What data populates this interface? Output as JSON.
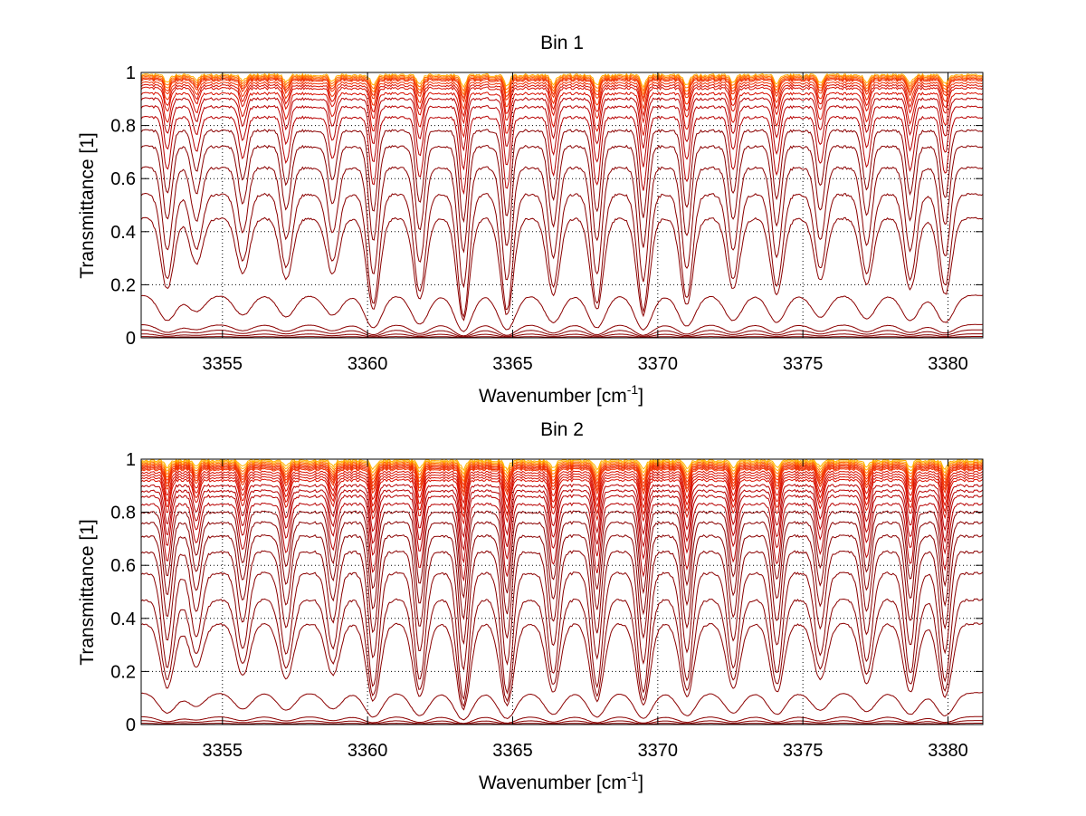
{
  "chart_data": [
    {
      "type": "line",
      "title": "Bin 1",
      "xlabel": "Wavenumber [cm",
      "xlabel_exponent": "-1",
      "xlabel_close": "]",
      "ylabel": "Transmittance [1]",
      "xlim": [
        3352.2,
        3381.2
      ],
      "ylim": [
        0,
        1
      ],
      "grid": true,
      "xticks": [
        3355,
        3360,
        3365,
        3370,
        3375,
        3380
      ],
      "xtick_labels": [
        "3355",
        "3360",
        "3365",
        "3370",
        "3375",
        "3380"
      ],
      "yticks": [
        0,
        0.2,
        0.4,
        0.6,
        0.8,
        1
      ],
      "ytick_labels": [
        "0",
        "0.2",
        "0.4",
        "0.6",
        "0.8",
        "1"
      ],
      "series_description_values": {
        "line_centers": [
          3353.1,
          3354.1,
          3355.7,
          3357.2,
          3358.8,
          3360.2,
          3361.8,
          3363.3,
          3364.8,
          3366.4,
          3367.9,
          3369.5,
          3371.0,
          3372.6,
          3374.1,
          3375.6,
          3377.2,
          3378.7,
          3379.9
        ],
        "line_strengths": [
          0.7,
          0.45,
          0.55,
          0.6,
          0.55,
          0.9,
          0.8,
          1.0,
          0.95,
          0.75,
          0.9,
          0.95,
          0.85,
          0.7,
          0.75,
          0.6,
          0.65,
          0.7,
          0.75
        ],
        "continuum_levels": [
          0.99,
          0.985,
          0.98,
          0.975,
          0.97,
          0.96,
          0.95,
          0.94,
          0.92,
          0.9,
          0.87,
          0.83,
          0.78,
          0.72,
          0.64,
          0.54,
          0.45,
          0.16,
          0.05,
          0.03,
          0.015,
          0.005
        ]
      }
    },
    {
      "type": "line",
      "title": "Bin 2",
      "xlabel": "Wavenumber [cm",
      "xlabel_exponent": "-1",
      "xlabel_close": "]",
      "ylabel": "Transmittance [1]",
      "xlim": [
        3352.2,
        3381.2
      ],
      "ylim": [
        0,
        1
      ],
      "grid": true,
      "xticks": [
        3355,
        3360,
        3365,
        3370,
        3375,
        3380
      ],
      "xtick_labels": [
        "3355",
        "3360",
        "3365",
        "3370",
        "3375",
        "3380"
      ],
      "yticks": [
        0,
        0.2,
        0.4,
        0.6,
        0.8,
        1
      ],
      "ytick_labels": [
        "0",
        "0.2",
        "0.4",
        "0.6",
        "0.8",
        "1"
      ],
      "series_description_values": {
        "line_centers": [
          3353.1,
          3354.1,
          3355.7,
          3357.2,
          3358.8,
          3360.2,
          3361.8,
          3363.3,
          3364.8,
          3366.4,
          3367.9,
          3369.5,
          3371.0,
          3372.6,
          3374.1,
          3375.6,
          3377.2,
          3378.7,
          3379.9
        ],
        "line_strengths": [
          0.75,
          0.5,
          0.6,
          0.65,
          0.6,
          0.9,
          0.85,
          1.0,
          0.95,
          0.8,
          0.9,
          0.95,
          0.85,
          0.75,
          0.8,
          0.65,
          0.7,
          0.8,
          0.85
        ],
        "continuum_levels": [
          0.995,
          0.99,
          0.985,
          0.98,
          0.975,
          0.97,
          0.965,
          0.96,
          0.95,
          0.94,
          0.93,
          0.92,
          0.9,
          0.88,
          0.86,
          0.83,
          0.8,
          0.76,
          0.71,
          0.65,
          0.57,
          0.47,
          0.38,
          0.12,
          0.03,
          0.015,
          0.005
        ]
      }
    }
  ]
}
